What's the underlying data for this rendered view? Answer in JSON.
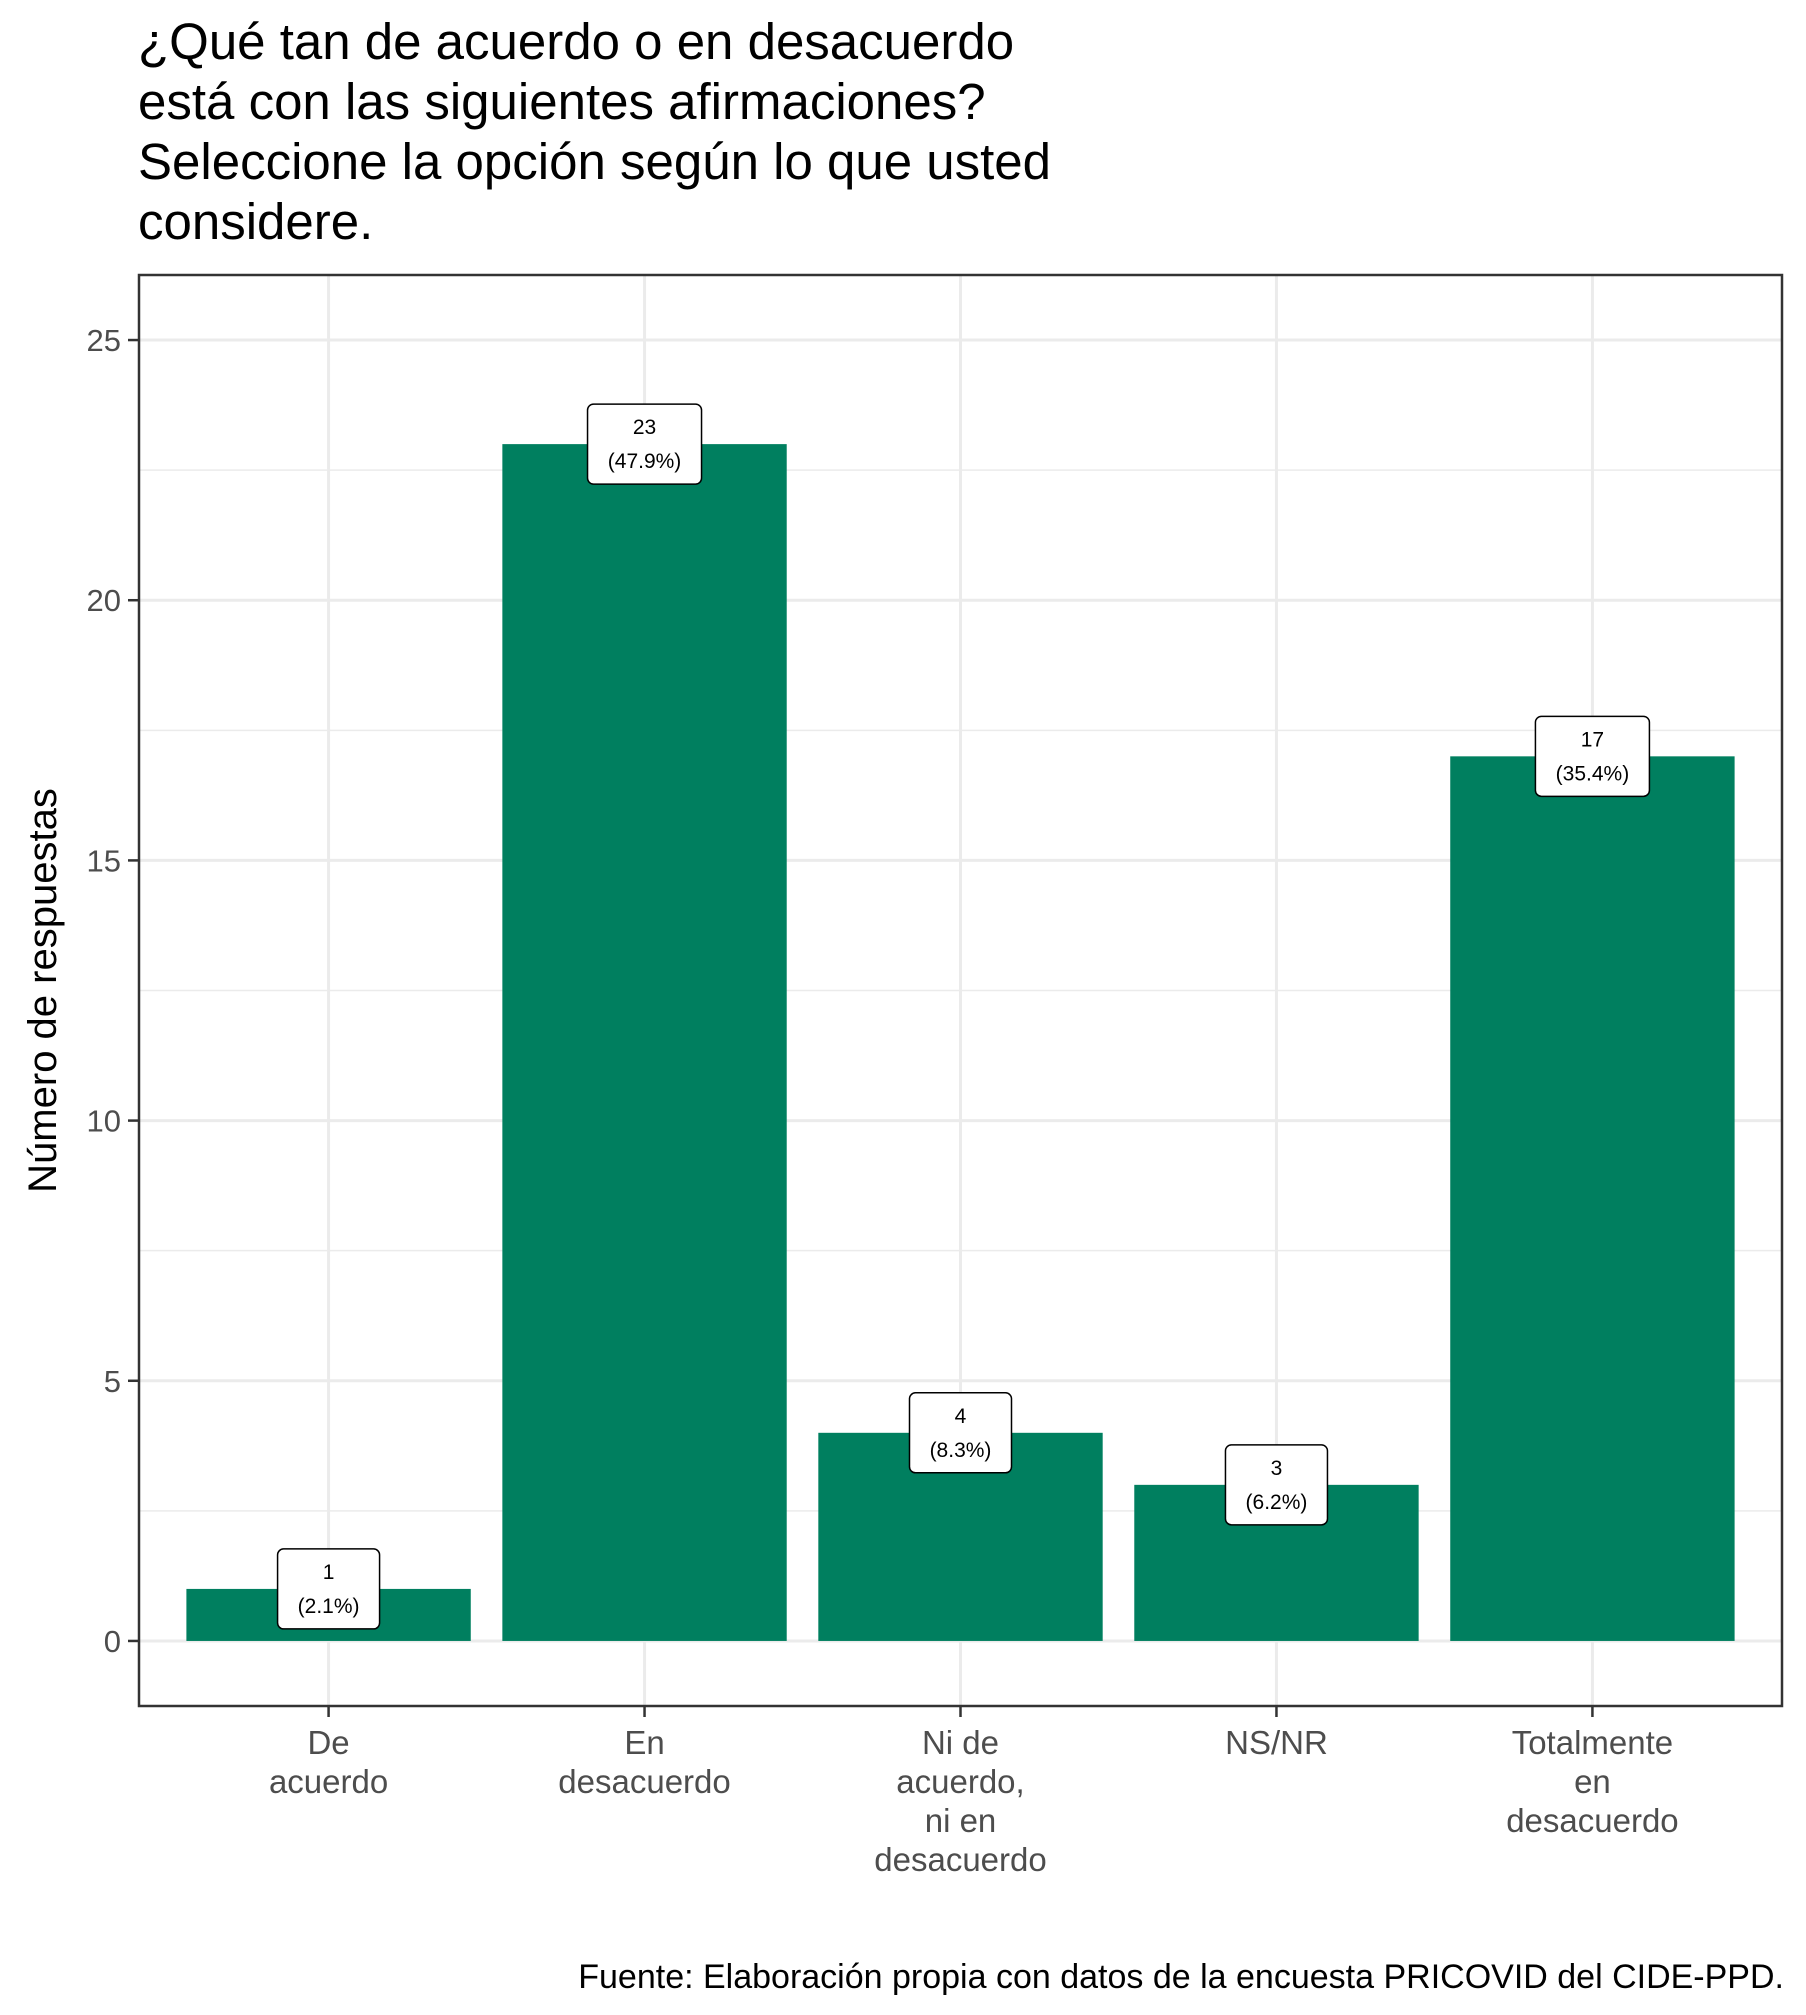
{
  "chart_data": {
    "type": "bar",
    "title": "¿Qué tan de acuerdo o en desacuerdo\nestá con las siguientes afirmaciones?\nSeleccione la opción según lo que usted\nconsidere.",
    "xlabel": "",
    "ylabel": "Número de respuestas",
    "categories": [
      "De\nacuerdo",
      "En\ndesacuerdo",
      "Ni de\nacuerdo,\nni en\ndesacuerdo",
      "NS/NR",
      "Totalmente\nen\ndesacuerdo"
    ],
    "values": [
      1,
      23,
      4,
      3,
      17
    ],
    "data_labels": [
      "1\n(2.1%)",
      "23\n(47.9%)",
      "4\n(8.3%)",
      "3\n(6.2%)",
      "17\n(35.4%)"
    ],
    "ylim": [
      -1.25,
      26.25
    ],
    "yticks": [
      0,
      5,
      10,
      15,
      20,
      25
    ],
    "grid": true,
    "bar_color": "#007F5F",
    "caption": "Fuente: Elaboración propia con datos de la encuesta PRICOVID del CIDE-PPD."
  }
}
